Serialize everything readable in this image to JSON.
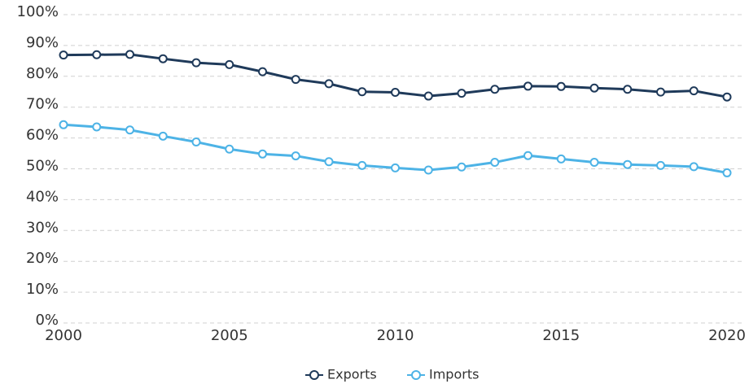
{
  "chart_data": {
    "type": "line",
    "x": [
      2000,
      2001,
      2002,
      2003,
      2004,
      2005,
      2006,
      2007,
      2008,
      2009,
      2010,
      2011,
      2012,
      2013,
      2014,
      2015,
      2016,
      2017,
      2018,
      2019,
      2020
    ],
    "series": [
      {
        "name": "Exports",
        "color": "#1f3a5a",
        "values": [
          86.9,
          87.0,
          87.1,
          85.7,
          84.4,
          83.8,
          81.5,
          79.0,
          77.6,
          75.0,
          74.8,
          73.6,
          74.5,
          75.8,
          76.8,
          76.7,
          76.2,
          75.8,
          74.9,
          75.3,
          73.3
        ]
      },
      {
        "name": "Imports",
        "color": "#4db3e6",
        "values": [
          64.3,
          63.6,
          62.6,
          60.6,
          58.7,
          56.4,
          54.8,
          54.2,
          52.3,
          51.1,
          50.3,
          49.6,
          50.6,
          52.1,
          54.3,
          53.2,
          52.1,
          51.4,
          51.1,
          50.7,
          48.7
        ]
      }
    ],
    "xlim": [
      2000,
      2020
    ],
    "xticks": [
      2000,
      2005,
      2010,
      2015,
      2020
    ],
    "ylim": [
      0,
      100
    ],
    "yticks": [
      {
        "value": 0,
        "label": "0%"
      },
      {
        "value": 10,
        "label": "10%"
      },
      {
        "value": 20,
        "label": "20%"
      },
      {
        "value": 30,
        "label": "30%"
      },
      {
        "value": 40,
        "label": "40%"
      },
      {
        "value": 50,
        "label": "50%"
      },
      {
        "value": 60,
        "label": "60%"
      },
      {
        "value": 70,
        "label": "70%"
      },
      {
        "value": 80,
        "label": "80%"
      },
      {
        "value": 90,
        "label": "90%"
      },
      {
        "value": 100,
        "label": "100%"
      }
    ],
    "grid": true,
    "legend": "bottom"
  }
}
